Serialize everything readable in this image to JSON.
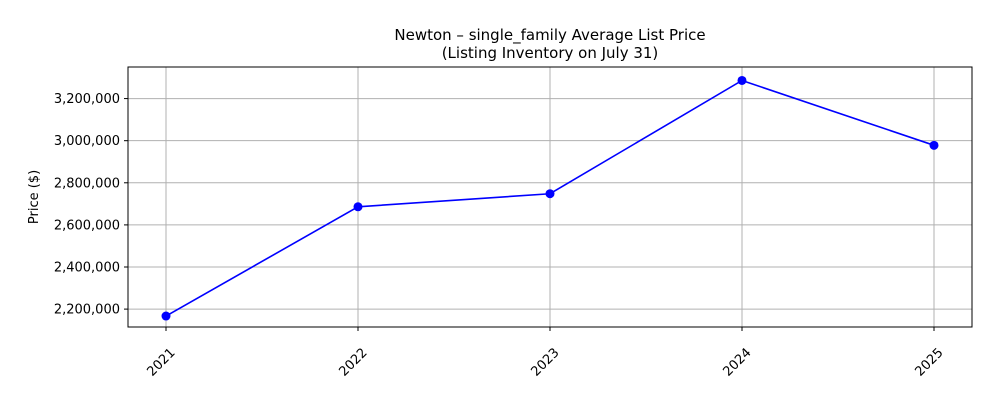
{
  "chart_data": {
    "type": "line",
    "title_line1": "Newton – single_family Average List Price",
    "title_line2": "(Listing Inventory on July 31)",
    "xlabel": "",
    "ylabel": "Price ($)",
    "x": [
      "2021",
      "2022",
      "2023",
      "2024",
      "2025"
    ],
    "series": [
      {
        "values": [
          2167000,
          2686000,
          2748000,
          3286000,
          2978000
        ]
      }
    ],
    "ylim": [
      2115000,
      3350000
    ],
    "yticks": [
      2200000,
      2400000,
      2600000,
      2800000,
      3000000,
      3200000
    ],
    "ytick_labels": [
      "2,200,000",
      "2,400,000",
      "2,600,000",
      "2,800,000",
      "3,000,000",
      "3,200,000"
    ],
    "grid": true,
    "line_color": "#0000ff",
    "grid_color": "#b0b0b0"
  }
}
